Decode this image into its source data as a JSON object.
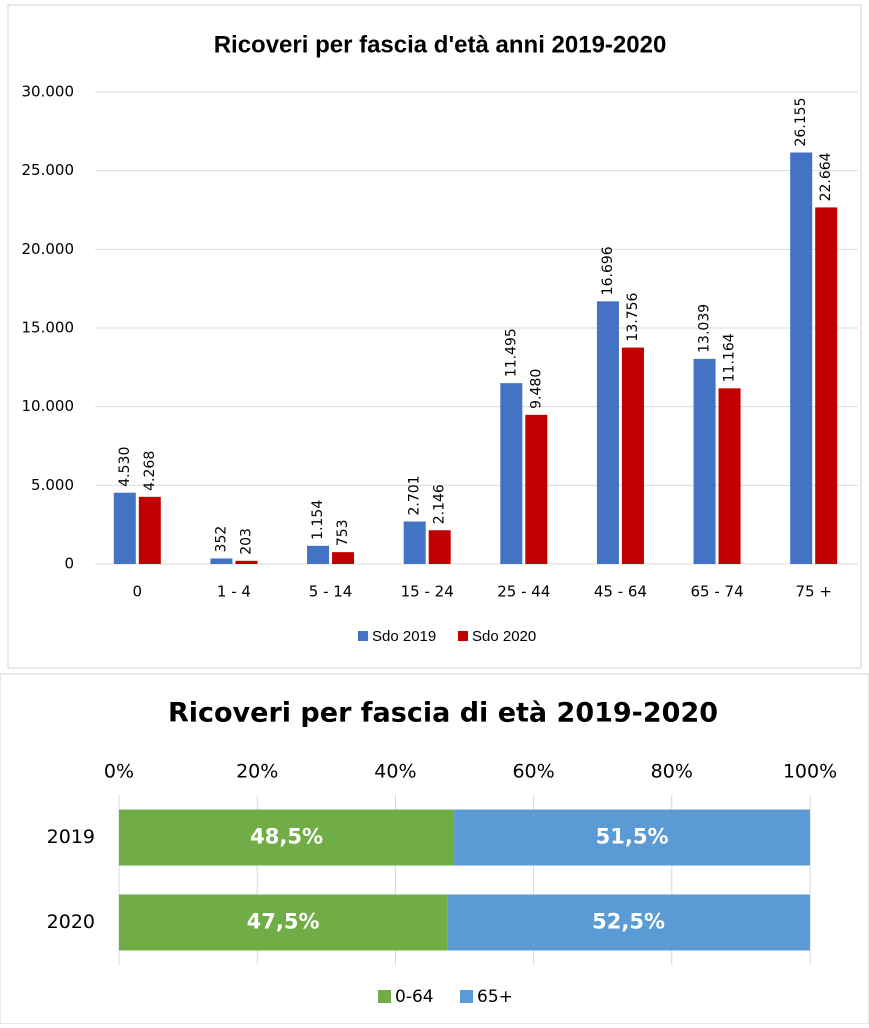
{
  "chart_data": [
    {
      "type": "grouped-bar",
      "title": "Ricoveri per fascia d'età anni 2019-2020",
      "categories": [
        "0",
        "1 - 4",
        "5 - 14",
        "15 - 24",
        "25 - 44",
        "45 - 64",
        "65 - 74",
        "75 +"
      ],
      "series": [
        {
          "name": "Sdo 2019",
          "color": "#4472c4",
          "values": [
            4530,
            352,
            1154,
            2701,
            11495,
            16696,
            13039,
            26155
          ],
          "value_labels": [
            "4.530",
            "352",
            "1.154",
            "2.701",
            "11.495",
            "16.696",
            "13.039",
            "26.155"
          ]
        },
        {
          "name": "Sdo 2020",
          "color": "#c00000",
          "values": [
            4268,
            203,
            753,
            2146,
            9480,
            13756,
            11164,
            22664
          ],
          "value_labels": [
            "4.268",
            "203",
            "753",
            "2.146",
            "9.480",
            "13.756",
            "11.164",
            "22.664"
          ]
        }
      ],
      "ylim": [
        0,
        30000
      ],
      "yticks": [
        0,
        {
          "value": 5000,
          "label": "5.000"
        },
        {
          "value": 10000,
          "label": "10.000"
        },
        {
          "value": 15000,
          "label": "15.000"
        },
        {
          "value": 20000,
          "label": "20.000"
        },
        {
          "value": 25000,
          "label": "25.000"
        },
        {
          "value": 30000,
          "label": "30.000"
        }
      ],
      "grid": true,
      "legend": "bottom"
    },
    {
      "type": "stacked-hbar",
      "title": "Ricoveri per fascia di età 2019-2020",
      "categories": [
        "2019",
        "2020"
      ],
      "series": [
        {
          "name": "0-64",
          "color": "#70ad47",
          "values": [
            48.5,
            47.5
          ],
          "value_labels": [
            "48,5%",
            "47,5%"
          ]
        },
        {
          "name": "65+",
          "color": "#5b9bd5",
          "values": [
            51.5,
            52.5
          ],
          "value_labels": [
            "51,5%",
            "52,5%"
          ]
        }
      ],
      "xlim": [
        0,
        100
      ],
      "xticks": [
        {
          "value": 0,
          "label": "0%"
        },
        {
          "value": 20,
          "label": "20%"
        },
        {
          "value": 40,
          "label": "40%"
        },
        {
          "value": 60,
          "label": "60%"
        },
        {
          "value": 80,
          "label": "80%"
        },
        {
          "value": 100,
          "label": "100%"
        }
      ],
      "grid": true,
      "legend": "bottom"
    }
  ]
}
